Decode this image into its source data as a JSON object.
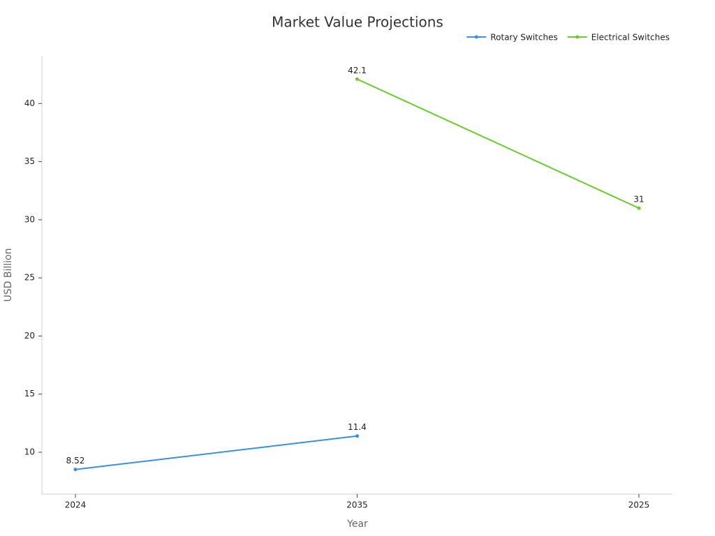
{
  "chart_data": {
    "type": "line",
    "title": "Market Value Projections",
    "x_label": "Year",
    "y_label": "USD Billion",
    "categories": [
      "2024",
      "2035",
      "2025"
    ],
    "series": [
      {
        "name": "Rotary Switches",
        "color": "#3a8ee6",
        "values": [
          8.52,
          11.4,
          null
        ]
      },
      {
        "name": "Electrical Switches",
        "color": "#6acb2d",
        "values": [
          null,
          42.1,
          31
        ]
      }
    ],
    "ylim": [
      6.4,
      44.1
    ],
    "yticks": [
      10,
      15,
      20,
      25,
      30,
      35,
      40
    ],
    "legend": "top-right",
    "grid": false,
    "data_labels": true
  }
}
